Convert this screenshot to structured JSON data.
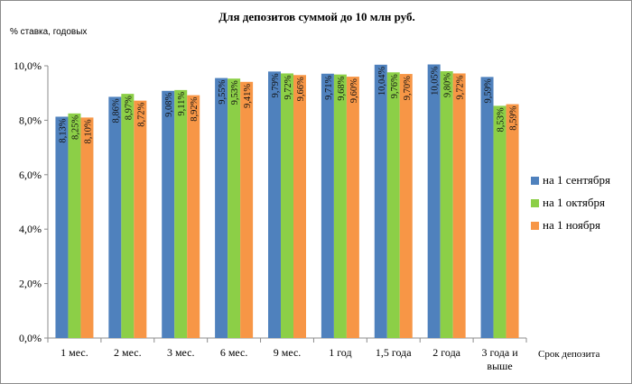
{
  "chart_data": {
    "type": "bar",
    "title": "Для депозитов суммой до 10 млн руб.",
    "ylabel": "% ставка, годовых",
    "xlabel": "Срок депозита",
    "categories": [
      "1 мес.",
      "2 мес.",
      "3 мес.",
      "6 мес.",
      "9 мес.",
      "1 год",
      "1,5 года",
      "2 года",
      "3 года и выше"
    ],
    "category_lines": [
      [
        "1 мес."
      ],
      [
        "2 мес."
      ],
      [
        "3 мес."
      ],
      [
        "6 мес."
      ],
      [
        "9 мес."
      ],
      [
        "1 год"
      ],
      [
        "1,5 года"
      ],
      [
        "2 года"
      ],
      [
        "3 года и",
        "выше"
      ]
    ],
    "ylim": [
      0,
      10
    ],
    "yticks": [
      0,
      2,
      4,
      6,
      8,
      10
    ],
    "ytick_labels": [
      "0,0%",
      "2,0%",
      "4,0%",
      "6,0%",
      "8,0%",
      "10,0%"
    ],
    "grid": false,
    "legend_position": "right",
    "series": [
      {
        "name": "на 1 сентября",
        "color": "#4f81bd",
        "values": [
          8.13,
          8.86,
          9.08,
          9.55,
          9.79,
          9.71,
          10.04,
          10.05,
          9.59
        ],
        "labels": [
          "8,13%",
          "8,86%",
          "9,08%",
          "9,55%",
          "9,79%",
          "9,71%",
          "10,04%",
          "10,05%",
          "9,59%"
        ]
      },
      {
        "name": "на 1 октября",
        "color": "#8ccf47",
        "values": [
          8.25,
          8.97,
          9.11,
          9.53,
          9.72,
          9.68,
          9.76,
          9.8,
          8.53
        ],
        "labels": [
          "8,25%",
          "8,97%",
          "9,11%",
          "9,53%",
          "9,72%",
          "9,68%",
          "9,76%",
          "9,80%",
          "8,53%"
        ]
      },
      {
        "name": "на 1 ноября",
        "color": "#f79646",
        "values": [
          8.1,
          8.72,
          8.92,
          9.41,
          9.66,
          9.6,
          9.7,
          9.72,
          8.59
        ],
        "labels": [
          "8,10%",
          "8,72%",
          "8,92%",
          "9,41%",
          "9,66%",
          "9,60%",
          "9,70%",
          "9,72%",
          "8,59%"
        ]
      }
    ]
  }
}
